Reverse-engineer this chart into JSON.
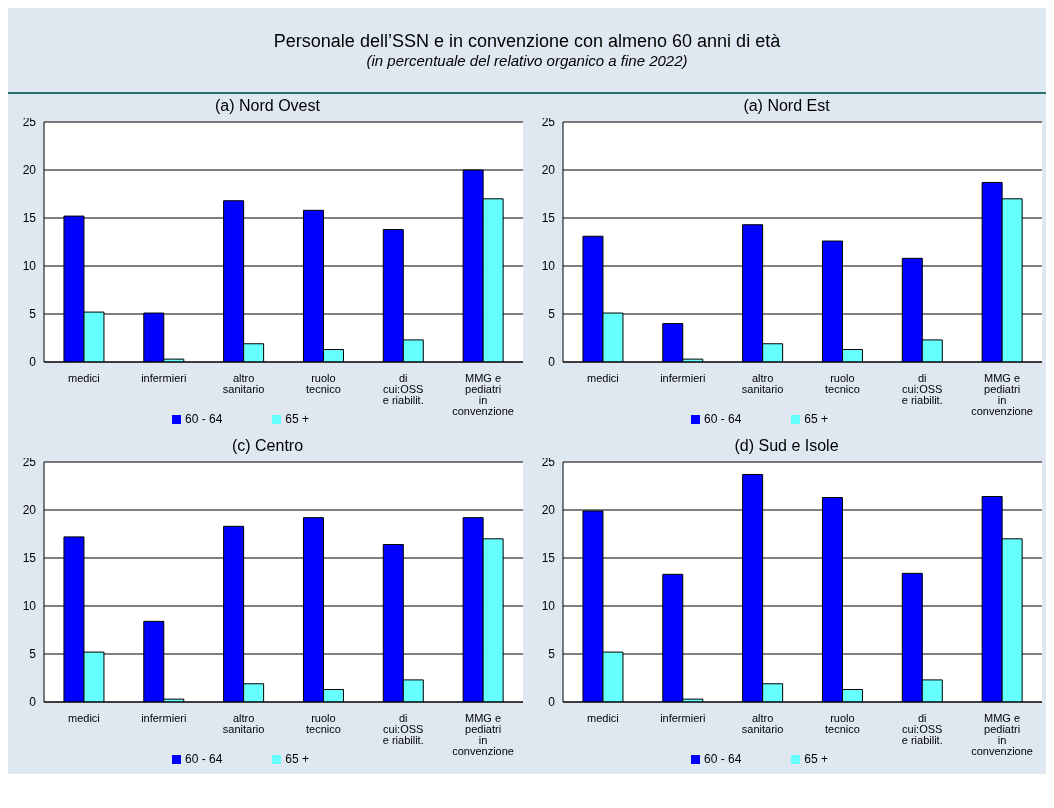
{
  "chart_data": [
    {
      "type": "bar",
      "title": "(a) Nord Ovest",
      "annotations": [
        "Personale dell’SSN e in convenzione con almeno 60 anni di età",
        "(in percentuale del relativo organico a fine 2022)"
      ],
      "categories": [
        "medici",
        "infermieri",
        "altro sanitario",
        "ruolo tecnico",
        "di cui:OSS e riabilit.",
        "MMG e pediatri in convenzione"
      ],
      "series": [
        {
          "name": "60 - 64",
          "color": "#0000ff",
          "values": [
            15.2,
            5.1,
            16.8,
            15.8,
            13.8,
            20.0
          ]
        },
        {
          "name": "65 +",
          "color": "#66ffff",
          "values": [
            5.2,
            0.3,
            1.9,
            1.3,
            2.3,
            17.0
          ]
        }
      ],
      "ylim": [
        0,
        25
      ],
      "yticks": [
        0,
        5,
        10,
        15,
        20,
        25
      ],
      "grid": "y",
      "legend": "bottom"
    },
    {
      "type": "bar",
      "title": "(a) Nord Est",
      "categories": [
        "medici",
        "infermieri",
        "altro sanitario",
        "ruolo tecnico",
        "di cui:OSS e riabilit.",
        "MMG e pediatri in convenzione"
      ],
      "series": [
        {
          "name": "60 - 64",
          "color": "#0000ff",
          "values": [
            13.1,
            4.0,
            14.3,
            12.6,
            10.8,
            18.7
          ]
        },
        {
          "name": "65 +",
          "color": "#66ffff",
          "values": [
            5.1,
            0.3,
            1.9,
            1.3,
            2.3,
            17.0
          ]
        }
      ],
      "ylim": [
        0,
        25
      ],
      "yticks": [
        0,
        5,
        10,
        15,
        20,
        25
      ],
      "grid": "y",
      "legend": "bottom"
    },
    {
      "type": "bar",
      "title": "(c) Centro",
      "categories": [
        "medici",
        "infermieri",
        "altro sanitario",
        "ruolo tecnico",
        "di cui:OSS e riabilit.",
        "MMG e pediatri in convenzione"
      ],
      "series": [
        {
          "name": "60 - 64",
          "color": "#0000ff",
          "values": [
            17.2,
            8.4,
            18.3,
            19.2,
            16.4,
            19.2
          ]
        },
        {
          "name": "65 +",
          "color": "#66ffff",
          "values": [
            5.2,
            0.3,
            1.9,
            1.3,
            2.3,
            17.0
          ]
        }
      ],
      "ylim": [
        0,
        25
      ],
      "yticks": [
        0,
        5,
        10,
        15,
        20,
        25
      ],
      "grid": "y",
      "legend": "bottom"
    },
    {
      "type": "bar",
      "title": "(d) Sud e Isole",
      "categories": [
        "medici",
        "infermieri",
        "altro sanitario",
        "ruolo tecnico",
        "di cui:OSS e riabilit.",
        "MMG e pediatri in convenzione"
      ],
      "series": [
        {
          "name": "60 - 64",
          "color": "#0000ff",
          "values": [
            19.9,
            13.3,
            23.7,
            21.3,
            13.4,
            21.4
          ]
        },
        {
          "name": "65 +",
          "color": "#66ffff",
          "values": [
            5.2,
            0.3,
            1.9,
            1.3,
            2.3,
            17.0
          ]
        }
      ],
      "ylim": [
        0,
        25
      ],
      "yticks": [
        0,
        5,
        10,
        15,
        20,
        25
      ],
      "grid": "y",
      "legend": "bottom"
    }
  ]
}
